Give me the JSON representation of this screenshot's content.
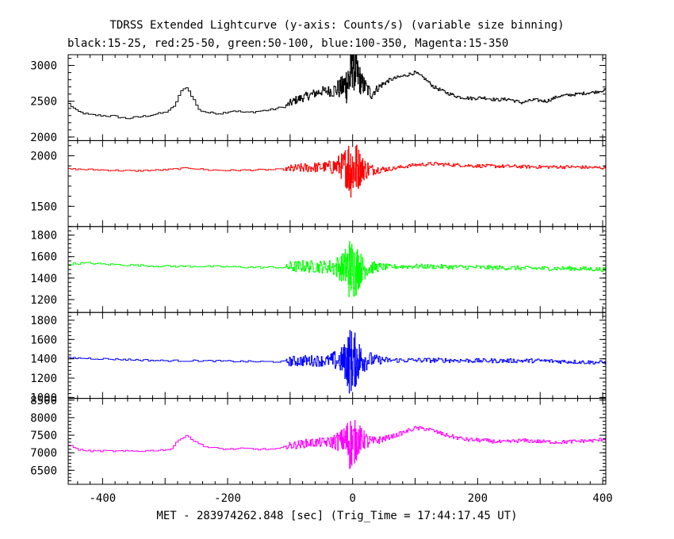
{
  "chart_data": {
    "type": "line",
    "title": "TDRSS Extended Lightcurve (y-axis: Counts/s) (variable size binning)",
    "subtitle": "black:15-25, red:25-50, green:50-100, blue:100-350, Magenta:15-350",
    "xlabel": "MET - 283974262.848 [sec] (Trig_Time = 17:44:17.45 UT)",
    "xlim": [
      -455,
      405
    ],
    "x_ticks": [
      -400,
      -200,
      0,
      200,
      400
    ],
    "grid": false,
    "series": [
      {
        "name": "black:15-25",
        "color": "#000000",
        "ylim": [
          1950,
          3150
        ],
        "y_ticks": [
          2000,
          2500,
          3000
        ],
        "points": [
          [
            -455,
            2480
          ],
          [
            -440,
            2360
          ],
          [
            -420,
            2310
          ],
          [
            -400,
            2300
          ],
          [
            -380,
            2290
          ],
          [
            -360,
            2260
          ],
          [
            -340,
            2280
          ],
          [
            -320,
            2310
          ],
          [
            -300,
            2340
          ],
          [
            -285,
            2420
          ],
          [
            -275,
            2620
          ],
          [
            -265,
            2700
          ],
          [
            -255,
            2550
          ],
          [
            -245,
            2380
          ],
          [
            -230,
            2340
          ],
          [
            -210,
            2330
          ],
          [
            -190,
            2370
          ],
          [
            -170,
            2340
          ],
          [
            -150,
            2360
          ],
          [
            -130,
            2380
          ],
          [
            -110,
            2420
          ],
          [
            -90,
            2520
          ],
          [
            -70,
            2580
          ],
          [
            -50,
            2640
          ],
          [
            -30,
            2650
          ],
          [
            -15,
            2700
          ],
          [
            -5,
            2800
          ],
          [
            0,
            3050
          ],
          [
            5,
            2900
          ],
          [
            15,
            2750
          ],
          [
            30,
            2600
          ],
          [
            45,
            2720
          ],
          [
            60,
            2800
          ],
          [
            80,
            2850
          ],
          [
            100,
            2900
          ],
          [
            115,
            2820
          ],
          [
            130,
            2700
          ],
          [
            150,
            2620
          ],
          [
            170,
            2560
          ],
          [
            190,
            2540
          ],
          [
            210,
            2550
          ],
          [
            230,
            2520
          ],
          [
            250,
            2530
          ],
          [
            270,
            2480
          ],
          [
            290,
            2520
          ],
          [
            310,
            2500
          ],
          [
            330,
            2570
          ],
          [
            350,
            2590
          ],
          [
            370,
            2610
          ],
          [
            390,
            2630
          ],
          [
            405,
            2660
          ]
        ],
        "variability": [
          [
            -455,
            15
          ],
          [
            -110,
            15
          ],
          [
            -100,
            55
          ],
          [
            -40,
            70
          ],
          [
            -15,
            170
          ],
          [
            -5,
            420
          ],
          [
            5,
            320
          ],
          [
            15,
            150
          ],
          [
            35,
            60
          ],
          [
            60,
            25
          ],
          [
            405,
            20
          ]
        ]
      },
      {
        "name": "red:25-50",
        "color": "#ff0000",
        "ylim": [
          1300,
          2150
        ],
        "y_ticks": [
          1500,
          2000
        ],
        "points": [
          [
            -455,
            1870
          ],
          [
            -400,
            1860
          ],
          [
            -350,
            1850
          ],
          [
            -300,
            1860
          ],
          [
            -260,
            1880
          ],
          [
            -230,
            1860
          ],
          [
            -200,
            1855
          ],
          [
            -150,
            1860
          ],
          [
            -110,
            1865
          ],
          [
            -80,
            1880
          ],
          [
            -40,
            1890
          ],
          [
            -10,
            1900
          ],
          [
            0,
            1880
          ],
          [
            10,
            1880
          ],
          [
            30,
            1860
          ],
          [
            60,
            1870
          ],
          [
            100,
            1910
          ],
          [
            130,
            1920
          ],
          [
            160,
            1910
          ],
          [
            200,
            1900
          ],
          [
            250,
            1895
          ],
          [
            300,
            1890
          ],
          [
            350,
            1890
          ],
          [
            405,
            1880
          ]
        ],
        "variability": [
          [
            -455,
            8
          ],
          [
            -110,
            8
          ],
          [
            -100,
            40
          ],
          [
            -40,
            55
          ],
          [
            -15,
            140
          ],
          [
            -5,
            320
          ],
          [
            5,
            280
          ],
          [
            15,
            130
          ],
          [
            35,
            45
          ],
          [
            60,
            18
          ],
          [
            405,
            16
          ]
        ]
      },
      {
        "name": "green:50-100",
        "color": "#00ff00",
        "ylim": [
          1080,
          1880
        ],
        "y_ticks": [
          1200,
          1400,
          1600,
          1800
        ],
        "points": [
          [
            -455,
            1530
          ],
          [
            -420,
            1540
          ],
          [
            -400,
            1530
          ],
          [
            -350,
            1520
          ],
          [
            -300,
            1510
          ],
          [
            -250,
            1510
          ],
          [
            -200,
            1505
          ],
          [
            -150,
            1500
          ],
          [
            -110,
            1500
          ],
          [
            -80,
            1510
          ],
          [
            -40,
            1505
          ],
          [
            -10,
            1500
          ],
          [
            0,
            1480
          ],
          [
            10,
            1490
          ],
          [
            30,
            1500
          ],
          [
            60,
            1505
          ],
          [
            100,
            1510
          ],
          [
            150,
            1505
          ],
          [
            200,
            1500
          ],
          [
            250,
            1495
          ],
          [
            300,
            1490
          ],
          [
            350,
            1490
          ],
          [
            405,
            1480
          ]
        ],
        "variability": [
          [
            -455,
            9
          ],
          [
            -110,
            9
          ],
          [
            -100,
            55
          ],
          [
            -40,
            60
          ],
          [
            -15,
            140
          ],
          [
            -5,
            300
          ],
          [
            5,
            260
          ],
          [
            15,
            120
          ],
          [
            35,
            50
          ],
          [
            60,
            22
          ],
          [
            405,
            20
          ]
        ]
      },
      {
        "name": "blue:100-350",
        "color": "#0000ff",
        "ylim": [
          990,
          1880
        ],
        "y_ticks": [
          1000,
          1200,
          1400,
          1600,
          1800
        ],
        "points": [
          [
            -455,
            1410
          ],
          [
            -400,
            1400
          ],
          [
            -350,
            1390
          ],
          [
            -300,
            1380
          ],
          [
            -250,
            1380
          ],
          [
            -200,
            1375
          ],
          [
            -150,
            1370
          ],
          [
            -110,
            1370
          ],
          [
            -80,
            1380
          ],
          [
            -40,
            1380
          ],
          [
            -10,
            1385
          ],
          [
            0,
            1380
          ],
          [
            10,
            1390
          ],
          [
            30,
            1390
          ],
          [
            60,
            1385
          ],
          [
            100,
            1385
          ],
          [
            150,
            1385
          ],
          [
            200,
            1380
          ],
          [
            250,
            1380
          ],
          [
            300,
            1380
          ],
          [
            350,
            1370
          ],
          [
            405,
            1360
          ]
        ],
        "variability": [
          [
            -455,
            9
          ],
          [
            -110,
            9
          ],
          [
            -100,
            55
          ],
          [
            -40,
            60
          ],
          [
            -15,
            150
          ],
          [
            -5,
            360
          ],
          [
            5,
            280
          ],
          [
            15,
            140
          ],
          [
            35,
            55
          ],
          [
            60,
            25
          ],
          [
            405,
            20
          ]
        ]
      },
      {
        "name": "Magenta:15-350",
        "color": "#ff00ff",
        "ylim": [
          6100,
          8550
        ],
        "y_ticks": [
          6500,
          7000,
          7500,
          8000,
          8500
        ],
        "points": [
          [
            -455,
            7250
          ],
          [
            -440,
            7100
          ],
          [
            -420,
            7050
          ],
          [
            -400,
            7050
          ],
          [
            -360,
            7040
          ],
          [
            -320,
            7060
          ],
          [
            -290,
            7100
          ],
          [
            -275,
            7400
          ],
          [
            -265,
            7500
          ],
          [
            -250,
            7300
          ],
          [
            -230,
            7150
          ],
          [
            -200,
            7100
          ],
          [
            -170,
            7120
          ],
          [
            -150,
            7100
          ],
          [
            -120,
            7100
          ],
          [
            -100,
            7200
          ],
          [
            -70,
            7280
          ],
          [
            -40,
            7300
          ],
          [
            -15,
            7350
          ],
          [
            -5,
            7300
          ],
          [
            0,
            7250
          ],
          [
            10,
            7400
          ],
          [
            30,
            7300
          ],
          [
            50,
            7400
          ],
          [
            70,
            7500
          ],
          [
            100,
            7700
          ],
          [
            120,
            7680
          ],
          [
            150,
            7500
          ],
          [
            180,
            7380
          ],
          [
            210,
            7350
          ],
          [
            240,
            7300
          ],
          [
            270,
            7350
          ],
          [
            300,
            7320
          ],
          [
            330,
            7300
          ],
          [
            360,
            7330
          ],
          [
            390,
            7350
          ],
          [
            405,
            7400
          ]
        ],
        "variability": [
          [
            -455,
            25
          ],
          [
            -110,
            25
          ],
          [
            -100,
            110
          ],
          [
            -40,
            140
          ],
          [
            -15,
            350
          ],
          [
            -5,
            800
          ],
          [
            5,
            600
          ],
          [
            15,
            300
          ],
          [
            35,
            130
          ],
          [
            60,
            60
          ],
          [
            405,
            50
          ]
        ]
      }
    ]
  }
}
